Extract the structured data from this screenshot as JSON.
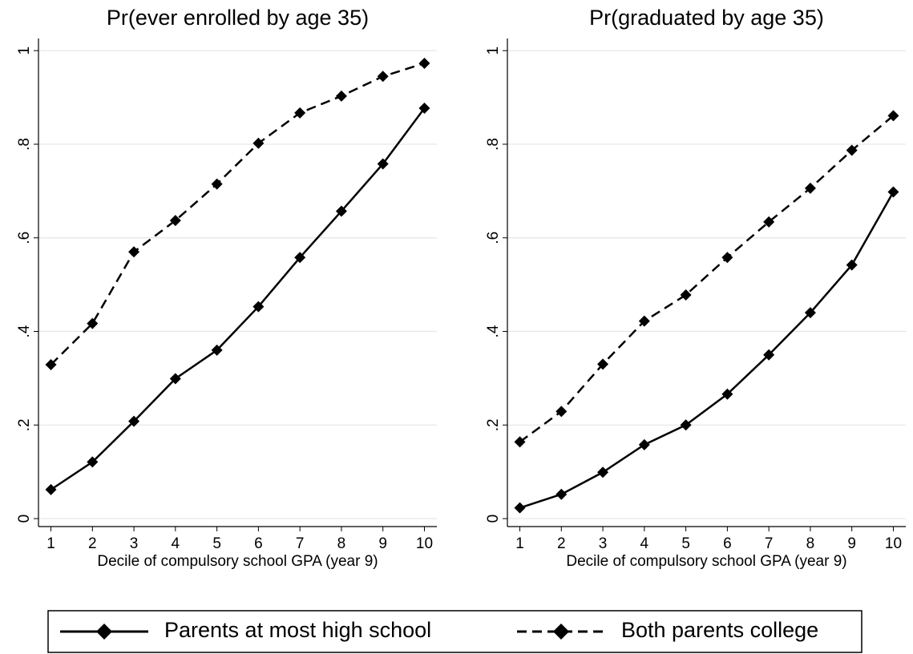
{
  "chart_data": [
    {
      "type": "line",
      "title": "Pr(ever enrolled by age 35)",
      "xlabel": "Decile of compulsory school GPA (year 9)",
      "x": [
        1,
        2,
        3,
        4,
        5,
        6,
        7,
        8,
        9,
        10
      ],
      "series": [
        {
          "values": [
            0.062,
            0.121,
            0.208,
            0.299,
            0.36,
            0.453,
            0.558,
            0.657,
            0.758,
            0.877
          ]
        },
        {
          "values": [
            0.329,
            0.417,
            0.57,
            0.637,
            0.715,
            0.802,
            0.867,
            0.903,
            0.945,
            0.973
          ]
        }
      ],
      "xlim": [
        0.7,
        10.3
      ],
      "ylim": [
        -0.017,
        1.026
      ],
      "xticks": [
        1,
        2,
        3,
        4,
        5,
        6,
        7,
        8,
        9,
        10
      ],
      "yticks": [
        0,
        {
          "value": 0.2,
          "label": ".2"
        },
        {
          "value": 0.4,
          "label": ".4"
        },
        {
          "value": 0.6,
          "label": ".6"
        },
        {
          "value": 0.8,
          "label": ".8"
        },
        1
      ],
      "grid": true
    },
    {
      "type": "line",
      "title": "Pr(graduated by age 35)",
      "xlabel": "Decile of compulsory school GPA (year 9)",
      "x": [
        1,
        2,
        3,
        4,
        5,
        6,
        7,
        8,
        9,
        10
      ],
      "series": [
        {
          "values": [
            0.023,
            0.052,
            0.099,
            0.158,
            0.2,
            0.266,
            0.35,
            0.44,
            0.542,
            0.698
          ]
        },
        {
          "values": [
            0.164,
            0.229,
            0.33,
            0.422,
            0.478,
            0.558,
            0.634,
            0.706,
            0.787,
            0.861
          ]
        }
      ],
      "xlim": [
        0.7,
        10.3
      ],
      "ylim": [
        -0.017,
        1.026
      ],
      "xticks": [
        1,
        2,
        3,
        4,
        5,
        6,
        7,
        8,
        9,
        10
      ],
      "yticks": [
        0,
        {
          "value": 0.2,
          "label": ".2"
        },
        {
          "value": 0.4,
          "label": ".4"
        },
        {
          "value": 0.6,
          "label": ".6"
        },
        {
          "value": 0.8,
          "label": ".8"
        },
        1
      ],
      "grid": true
    }
  ],
  "legend": {
    "entries": [
      {
        "name": "Parents at most high school",
        "color": "#000000",
        "dash": "solid"
      },
      {
        "name": "Both parents college",
        "color": "#000000",
        "dash": "dashed"
      }
    ]
  }
}
